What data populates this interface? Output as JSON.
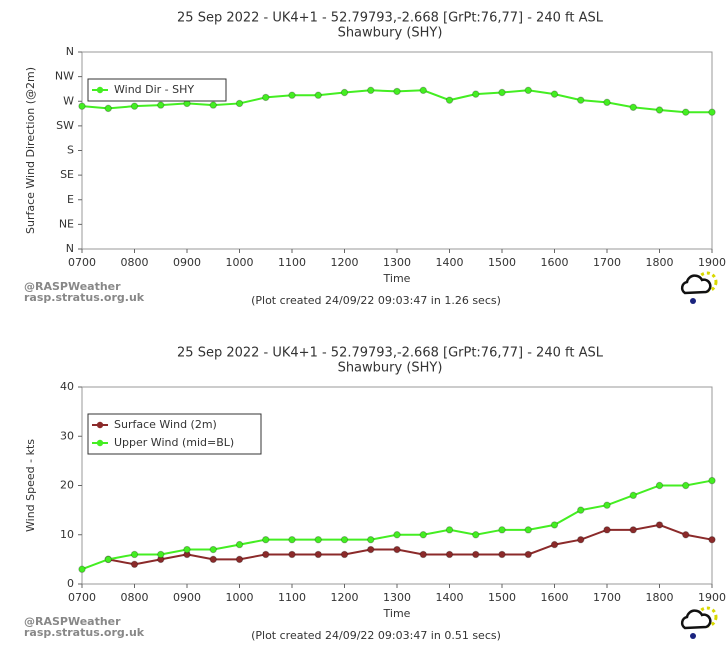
{
  "chart_data": [
    {
      "type": "line",
      "title": "25 Sep 2022 - UK4+1 - 52.79793,-2.668 [GrPt:76,77]  - 240 ft ASL",
      "subtitle": "Shawbury (SHY)",
      "y_label": "Surface Wind Direction (@2m)",
      "x_label": "Time",
      "credit": [
        "@RASPWeather",
        "rasp.stratus.org.uk"
      ],
      "footnote": "(Plot created 24/09/22 09:03:47 in 1.26 secs)",
      "legend": "upper left",
      "grid": false,
      "x": [
        7,
        7.5,
        8,
        8.5,
        9,
        9.5,
        10,
        10.5,
        11,
        11.5,
        12,
        12.5,
        13,
        13.5,
        14,
        14.5,
        15,
        15.5,
        16,
        16.5,
        17,
        17.5,
        18,
        18.5,
        19
      ],
      "xlim": [
        7,
        19
      ],
      "xticks": [
        {
          "value": 7,
          "label": "0700"
        },
        {
          "value": 8,
          "label": "0800"
        },
        {
          "value": 9,
          "label": "0900"
        },
        {
          "value": 10,
          "label": "1000"
        },
        {
          "value": 11,
          "label": "1100"
        },
        {
          "value": 12,
          "label": "1200"
        },
        {
          "value": 13,
          "label": "1300"
        },
        {
          "value": 14,
          "label": "1400"
        },
        {
          "value": 15,
          "label": "1500"
        },
        {
          "value": 16,
          "label": "1600"
        },
        {
          "value": 17,
          "label": "1700"
        },
        {
          "value": 18,
          "label": "1800"
        },
        {
          "value": 19,
          "label": "1900"
        }
      ],
      "ylim": [
        0,
        360
      ],
      "yticks": [
        {
          "value": 0,
          "label": "N"
        },
        {
          "value": 45,
          "label": "NE"
        },
        {
          "value": 90,
          "label": "E"
        },
        {
          "value": 135,
          "label": "SE"
        },
        {
          "value": 180,
          "label": "S"
        },
        {
          "value": 225,
          "label": "SW"
        },
        {
          "value": 270,
          "label": "W"
        },
        {
          "value": 315,
          "label": "NW"
        },
        {
          "value": 360,
          "label": "N"
        }
      ],
      "series": [
        {
          "name": "Wind Dir - SHY",
          "color": "#44ee22",
          "values": [
            261,
            257,
            261,
            263,
            266,
            263,
            266,
            277,
            281,
            281,
            286,
            290,
            288,
            290,
            272,
            283,
            286,
            290,
            283,
            272,
            268,
            259,
            254,
            250,
            250
          ]
        }
      ]
    },
    {
      "type": "line",
      "title": "25 Sep 2022 - UK4+1 - 52.79793,-2.668 [GrPt:76,77]  - 240 ft ASL",
      "subtitle": "Shawbury (SHY)",
      "y_label": "Wind Speed - kts",
      "x_label": "Time",
      "credit": [
        "@RASPWeather",
        "rasp.stratus.org.uk"
      ],
      "footnote": "(Plot created 24/09/22 09:03:47 in 0.51 secs)",
      "legend": "upper left",
      "grid": false,
      "x": [
        7,
        7.5,
        8,
        8.5,
        9,
        9.5,
        10,
        10.5,
        11,
        11.5,
        12,
        12.5,
        13,
        13.5,
        14,
        14.5,
        15,
        15.5,
        16,
        16.5,
        17,
        17.5,
        18,
        18.5,
        19
      ],
      "xlim": [
        7,
        19
      ],
      "xticks": [
        {
          "value": 7,
          "label": "0700"
        },
        {
          "value": 8,
          "label": "0800"
        },
        {
          "value": 9,
          "label": "0900"
        },
        {
          "value": 10,
          "label": "1000"
        },
        {
          "value": 11,
          "label": "1100"
        },
        {
          "value": 12,
          "label": "1200"
        },
        {
          "value": 13,
          "label": "1300"
        },
        {
          "value": 14,
          "label": "1400"
        },
        {
          "value": 15,
          "label": "1500"
        },
        {
          "value": 16,
          "label": "1600"
        },
        {
          "value": 17,
          "label": "1700"
        },
        {
          "value": 18,
          "label": "1800"
        },
        {
          "value": 19,
          "label": "1900"
        }
      ],
      "ylim": [
        0,
        40
      ],
      "yticks": [
        0,
        10,
        20,
        30,
        40
      ],
      "series": [
        {
          "name": "Surface Wind (2m)",
          "color": "#8b2a2a",
          "values": [
            null,
            5,
            4,
            5,
            6,
            5,
            5,
            6,
            6,
            6,
            6,
            7,
            7,
            6,
            6,
            6,
            6,
            6,
            8,
            9,
            11,
            11,
            12,
            10,
            9
          ]
        },
        {
          "name": "Upper Wind (mid=BL)",
          "color": "#44ee22",
          "values": [
            3,
            5,
            6,
            6,
            7,
            7,
            8,
            9,
            9,
            9,
            9,
            9,
            10,
            10,
            11,
            10,
            11,
            11,
            12,
            15,
            16,
            18,
            20,
            20,
            21
          ]
        }
      ]
    }
  ]
}
